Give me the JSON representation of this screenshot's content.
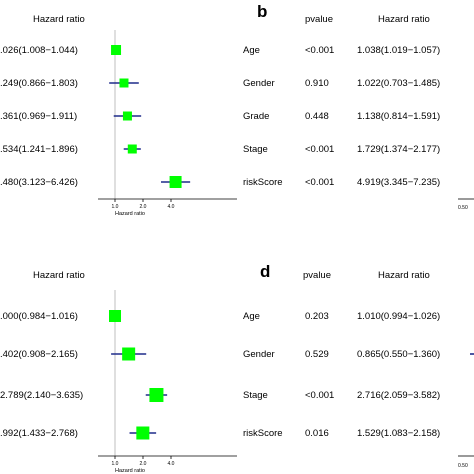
{
  "colors": {
    "box": "#00ff00",
    "ci_line": "#1f2b8a",
    "ref_line": "#bfbfbf",
    "axis": "#000000"
  },
  "chart_data": [
    {
      "type": "forest",
      "panel": "a",
      "visible_panel_letter": "",
      "header_left": "Hazard ratio",
      "xlabel": "Hazard ratio",
      "reference_line": 1.0,
      "x_tick_labels": [
        "1.0",
        "2.0",
        "4.0"
      ],
      "x_ticks": [
        1.0,
        2.0,
        4.0
      ],
      "rows": [
        {
          "hr_text": ".026(1.008−1.044)",
          "hr": 1.026,
          "lo": 1.008,
          "hi": 1.044
        },
        {
          "hr_text": ".249(0.866−1.803)",
          "hr": 1.249,
          "lo": 0.866,
          "hi": 1.803
        },
        {
          "hr_text": ".361(0.969−1.911)",
          "hr": 1.361,
          "lo": 0.969,
          "hi": 1.911
        },
        {
          "hr_text": ".534(1.241−1.896)",
          "hr": 1.534,
          "lo": 1.241,
          "hi": 1.896
        },
        {
          "hr_text": ".480(3.123−6.426)",
          "hr": 4.48,
          "lo": 3.123,
          "hi": 6.426
        }
      ]
    },
    {
      "type": "forest-table",
      "panel": "b",
      "visible_panel_letter": "b",
      "header_pvalue": "pvalue",
      "header_hr": "Hazard ratio",
      "x_tick_label_partial": "0.50",
      "rows": [
        {
          "name": "Age",
          "pvalue": "<0.001",
          "hr_text": "1.038(1.019−1.057)"
        },
        {
          "name": "Gender",
          "pvalue": "0.910",
          "hr_text": "1.022(0.703−1.485)"
        },
        {
          "name": "Grade",
          "pvalue": "0.448",
          "hr_text": "1.138(0.814−1.591)"
        },
        {
          "name": "Stage",
          "pvalue": "<0.001",
          "hr_text": "1.729(1.374−2.177)"
        },
        {
          "name": "riskScore",
          "pvalue": "<0.001",
          "hr_text": "4.919(3.345−7.235)"
        }
      ]
    },
    {
      "type": "forest",
      "panel": "c",
      "visible_panel_letter": "",
      "header_left": "Hazard ratio",
      "xlabel": "Hazard ratio",
      "reference_line": 1.0,
      "x_tick_labels": [
        "1.0",
        "2.0",
        "4.0"
      ],
      "x_ticks": [
        1.0,
        2.0,
        4.0
      ],
      "rows": [
        {
          "hr_text": ".000(0.984−1.016)",
          "hr": 1.0,
          "lo": 0.984,
          "hi": 1.016
        },
        {
          "hr_text": ".402(0.908−2.165)",
          "hr": 1.402,
          "lo": 0.908,
          "hi": 2.165
        },
        {
          "hr_text": "2.789(2.140−3.635)",
          "hr": 2.789,
          "lo": 2.14,
          "hi": 3.635
        },
        {
          "hr_text": ".992(1.433−2.768)",
          "hr": 1.992,
          "lo": 1.433,
          "hi": 2.768
        }
      ]
    },
    {
      "type": "forest-table",
      "panel": "d",
      "visible_panel_letter": "d",
      "header_pvalue": "pvalue",
      "header_hr": "Hazard ratio",
      "x_tick_label_partial": "0.50",
      "rows": [
        {
          "name": "Age",
          "pvalue": "0.203",
          "hr_text": "1.010(0.994−1.026)"
        },
        {
          "name": "Gender",
          "pvalue": "0.529",
          "hr_text": "0.865(0.550−1.360)"
        },
        {
          "name": "Stage",
          "pvalue": "<0.001",
          "hr_text": "2.716(2.059−3.582)"
        },
        {
          "name": "riskScore",
          "pvalue": "0.016",
          "hr_text": "1.529(1.083−2.158)"
        }
      ]
    }
  ]
}
